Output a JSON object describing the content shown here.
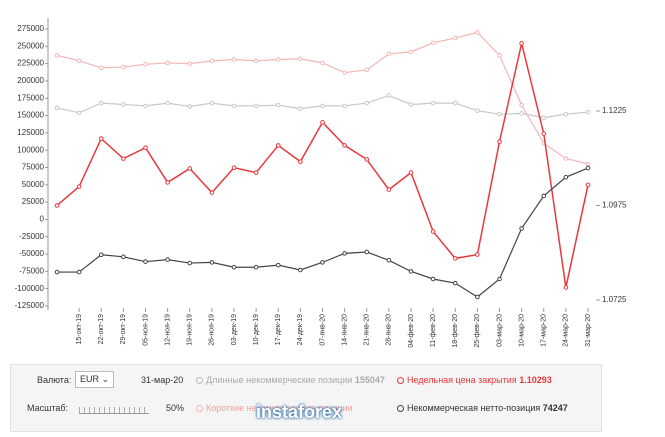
{
  "chart_data": {
    "type": "line",
    "categories": [
      null,
      "15-окт-19",
      "22-окт-19",
      "29-окт-19",
      "05-ноя-19",
      "12-ноя-19",
      "19-ноя-19",
      "26-ноя-19",
      "03-дек-19",
      "10-дек-19",
      "17-дек-19",
      "24-дек-19",
      "07-янв-20",
      "14-янв-20",
      "21-янв-20",
      "28-янв-20",
      "04-фев-20",
      "11-фев-20",
      "18-фев-20",
      "25-фев-20",
      "03-мар-20",
      "10-мар-20",
      "17-мар-20",
      "24-мар-20",
      "31-мар-20"
    ],
    "series": [
      {
        "name": "Длинные некоммерческие позиции",
        "color": "#c8c8c8",
        "values": [
          161000,
          154000,
          168000,
          166000,
          164000,
          168000,
          163000,
          168000,
          164000,
          164000,
          165000,
          160000,
          164000,
          164000,
          168000,
          179000,
          166000,
          168000,
          168000,
          157000,
          152000,
          153000,
          147000,
          152000,
          155047
        ]
      },
      {
        "name": "Короткие некоммерческие позиции",
        "color": "#f4b6b6",
        "values": [
          237000,
          229000,
          219000,
          220000,
          224000,
          226000,
          225000,
          229000,
          231000,
          229000,
          231000,
          232000,
          226000,
          212000,
          216000,
          239000,
          242000,
          255000,
          262000,
          270000,
          237000,
          165000,
          110000,
          88000,
          80000
        ]
      },
      {
        "name": "Недельная цена закрытия",
        "color": "#e8383d",
        "axis": "y2",
        "values": [
          1.0975,
          1.1025,
          1.1152,
          1.1099,
          1.1128,
          1.1036,
          1.1073,
          1.1009,
          1.1075,
          1.1062,
          1.1134,
          1.1091,
          1.1195,
          1.1134,
          1.1097,
          1.1017,
          1.1062,
          1.0906,
          1.0835,
          1.0845,
          1.1144,
          1.1404,
          1.1165,
          1.0758,
          1.10293
        ]
      },
      {
        "name": "Некоммерческая нетто-позиция",
        "color": "#444444",
        "values": [
          -76000,
          -76000,
          -51000,
          -54000,
          -61000,
          -58000,
          -63000,
          -62000,
          -69000,
          -69000,
          -66000,
          -73000,
          -62000,
          -49000,
          -47000,
          -59000,
          -75000,
          -86000,
          -92000,
          -112000,
          -86000,
          -13000,
          34000,
          61000,
          74247
        ]
      }
    ],
    "ylim": [
      -125000,
      275000
    ],
    "yticks": [
      275000,
      250000,
      225000,
      200000,
      175000,
      150000,
      125000,
      100000,
      75000,
      50000,
      25000,
      0,
      -25000,
      -50000,
      -75000,
      -100000,
      -125000
    ],
    "y2lim": [
      1.0709,
      1.1442
    ],
    "y2ticks": [
      1.1225,
      1.0975,
      1.0725
    ]
  },
  "footer": {
    "currency_label": "Валюта:",
    "currency": "EUR",
    "date": "31-мар-20",
    "scale_label": "Масштаб:",
    "scale": "50%",
    "long_value": "155047",
    "price_value": "1.10293",
    "net_value": "74247"
  },
  "watermark": "instaforex"
}
